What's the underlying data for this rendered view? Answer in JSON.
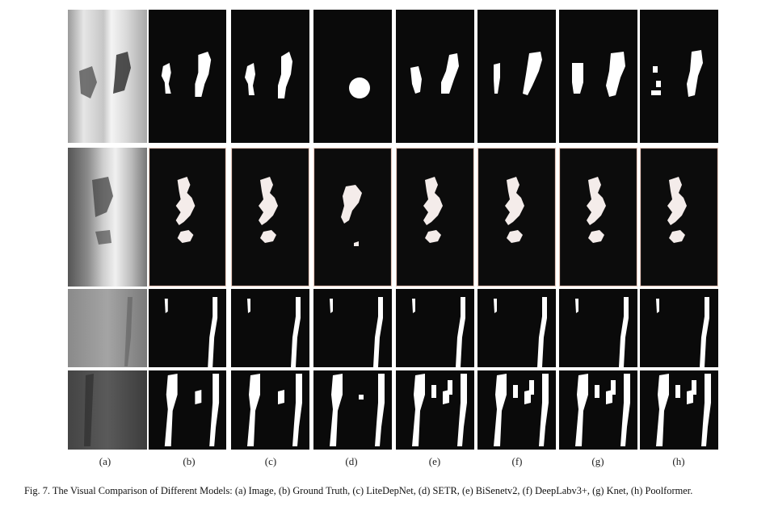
{
  "figure": {
    "column_labels": [
      "(a)",
      "(b)",
      "(c)",
      "(d)",
      "(e)",
      "(f)",
      "(g)",
      "(h)"
    ],
    "rows": [
      {
        "kind": "image-and-masks"
      },
      {
        "kind": "image-and-masks"
      },
      {
        "kind": "image-and-masks"
      },
      {
        "kind": "image-and-masks"
      }
    ],
    "caption": "Fig. 7.  The Visual Comparison of Different Models: (a) Image, (b) Ground Truth, (c) LiteDepNet, (d) SETR, (e) BiSenetv2, (f) DeepLabv3+, (g) Knet, (h) Poolformer.",
    "colors": {
      "mask_background": "#0a0a0a",
      "mask_foreground": "#ffffff",
      "row2_foreground": "#f4ecea",
      "row2_border": "#e9c9bd"
    }
  }
}
